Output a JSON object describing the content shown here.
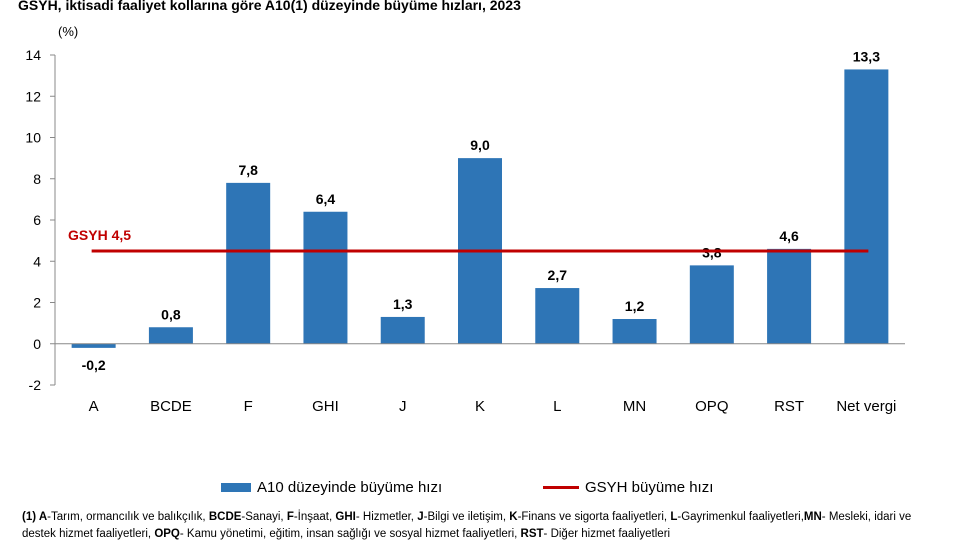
{
  "title": "GSYH, iktisadi faaliyet kollarına göre A10(1) düzeyinde büyüme hızları, 2023",
  "unit_label": "(%)",
  "chart_data": {
    "type": "bar",
    "categories": [
      "A",
      "BCDE",
      "F",
      "GHI",
      "J",
      "K",
      "L",
      "MN",
      "OPQ",
      "RST",
      "Net vergi"
    ],
    "series": [
      {
        "name": "A10 düzeyinde büyüme hızı",
        "values": [
          -0.2,
          0.8,
          7.8,
          6.4,
          1.3,
          9.0,
          2.7,
          1.2,
          3.8,
          4.6,
          13.3
        ],
        "color": "#2e75b6"
      }
    ],
    "data_labels": [
      "-0,2",
      "0,8",
      "7,8",
      "6,4",
      "1,3",
      "9,0",
      "2,7",
      "1,2",
      "3,8",
      "4,6",
      "13,3"
    ],
    "reference_line": {
      "name": "GSYH büyüme hızı",
      "value": 4.5,
      "label": "GSYH 4,5",
      "color": "#c00000"
    },
    "ylim": [
      -2,
      14
    ],
    "yticks": [
      -2,
      0,
      2,
      4,
      6,
      8,
      10,
      12,
      14
    ],
    "legend_position": "bottom"
  },
  "footnote": [
    {
      "bold": "(1) A",
      "text": "-Tarım, ormancılık ve balıkçılık, "
    },
    {
      "bold": "BCDE",
      "text": "-Sanayi, "
    },
    {
      "bold": "F",
      "text": "-İnşaat, "
    },
    {
      "bold": "GHI",
      "text": "- Hizmetler, "
    },
    {
      "bold": "J",
      "text": "-Bilgi ve iletişim, "
    },
    {
      "bold": "K",
      "text": "-Finans ve sigorta faaliyetleri, "
    },
    {
      "bold": "L",
      "text": "-Gayrimenkul faaliyetleri,"
    },
    {
      "bold": "MN",
      "text": "- Mesleki, idari ve destek hizmet faaliyetleri, "
    },
    {
      "bold": "OPQ",
      "text": "- Kamu yönetimi, eğitim, insan sağlığı ve sosyal hizmet faaliyetleri, "
    },
    {
      "bold": "RST",
      "text": "- Diğer hizmet faaliyetleri"
    }
  ]
}
